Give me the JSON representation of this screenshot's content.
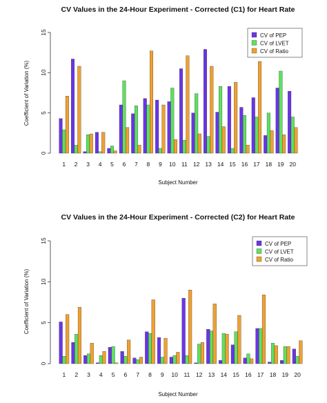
{
  "chart_data": [
    {
      "type": "bar",
      "title": "CV Values in the 24-Hour Experiment - Corrected (C1) for Heart Rate",
      "xlabel": "Subject Number",
      "ylabel": "Coefficient of Variation (%)",
      "ylim": [
        0,
        15
      ],
      "yticks": [
        "0",
        "5",
        "10",
        "15"
      ],
      "grid": false,
      "legend_position": "top-right",
      "categories": [
        "1",
        "2",
        "3",
        "4",
        "5",
        "6",
        "7",
        "8",
        "9",
        "10",
        "11",
        "12",
        "13",
        "14",
        "15",
        "16",
        "17",
        "18",
        "19",
        "20"
      ],
      "series": [
        {
          "name": "CV of PEP",
          "color": "#6a35e6",
          "values": [
            4.3,
            11.7,
            0.2,
            2.6,
            0.6,
            6.0,
            4.9,
            6.8,
            6.6,
            6.4,
            10.5,
            5.0,
            12.9,
            5.1,
            8.3,
            5.7,
            6.9,
            2.2,
            8.1,
            7.7
          ]
        },
        {
          "name": "CV of LVET",
          "color": "#5fe05f",
          "values": [
            2.9,
            1.0,
            2.3,
            0.2,
            0.9,
            9.0,
            5.9,
            6.0,
            0.6,
            8.1,
            1.6,
            7.4,
            2.1,
            8.3,
            0.6,
            4.7,
            4.5,
            5.0,
            10.2,
            4.5
          ]
        },
        {
          "name": "CV of Ratio",
          "color": "#f0a030",
          "values": [
            7.1,
            10.8,
            2.4,
            2.6,
            0.3,
            3.2,
            1.0,
            12.7,
            6.0,
            1.7,
            12.1,
            2.4,
            10.8,
            3.3,
            8.8,
            1.0,
            11.4,
            2.8,
            2.3,
            3.2
          ]
        }
      ]
    },
    {
      "type": "bar",
      "title": "CV Values in the 24-Hour Experiment - Corrected (C2) for Heart Rate",
      "xlabel": "Subject Number",
      "ylabel": "Coefficient of Variation (%)",
      "ylim": [
        0,
        15
      ],
      "yticks": [
        "0",
        "5",
        "10",
        "15"
      ],
      "grid": false,
      "legend_position": "top-right",
      "categories": [
        "1",
        "2",
        "3",
        "4",
        "5",
        "6",
        "7",
        "8",
        "9",
        "10",
        "11",
        "12",
        "13",
        "14",
        "15",
        "16",
        "17",
        "18",
        "19",
        "20"
      ],
      "series": [
        {
          "name": "CV of PEP",
          "color": "#6a35e6",
          "values": [
            5.1,
            2.6,
            1.0,
            0.1,
            2.0,
            1.5,
            0.7,
            3.9,
            3.2,
            0.8,
            8.0,
            0.1,
            4.2,
            0.4,
            2.3,
            0.7,
            4.3,
            0.2,
            0.4,
            1.8
          ]
        },
        {
          "name": "CV of LVET",
          "color": "#5fe05f",
          "values": [
            0.9,
            3.6,
            1.2,
            1.0,
            2.1,
            0.9,
            0.5,
            3.7,
            0.8,
            1.0,
            1.0,
            2.4,
            4.0,
            3.7,
            3.9,
            1.2,
            4.3,
            2.5,
            2.1,
            0.9
          ]
        },
        {
          "name": "CV of Ratio",
          "color": "#f0a030",
          "values": [
            6.0,
            6.9,
            2.5,
            1.5,
            0.1,
            2.9,
            0.8,
            7.8,
            3.1,
            1.4,
            9.0,
            2.6,
            7.3,
            3.6,
            5.9,
            0.6,
            8.4,
            2.2,
            2.1,
            2.8
          ]
        }
      ]
    }
  ]
}
